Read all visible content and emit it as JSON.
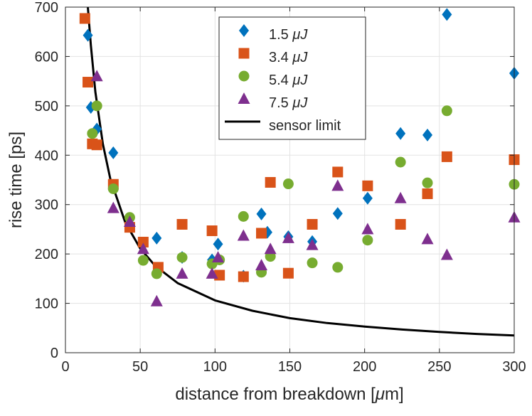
{
  "chart_data": {
    "type": "scatter",
    "title": "",
    "xlabel": "distance from breakdown [",
    "xlabel_unit": "μ",
    "xlabel_tail": "m]",
    "ylabel": "rise time [ps]",
    "xlim": [
      0,
      300
    ],
    "ylim": [
      0,
      700
    ],
    "xticks": [
      0,
      50,
      100,
      150,
      200,
      250,
      300
    ],
    "yticks": [
      0,
      100,
      200,
      300,
      400,
      500,
      600,
      700
    ],
    "grid": true,
    "legend_position": "top-center",
    "series": [
      {
        "name": "1.5 μJ",
        "label_num": "1.5",
        "label_unit": "μJ",
        "marker": "diamond",
        "color": "#0072BD",
        "x": [
          15,
          17,
          21,
          32,
          61,
          78,
          98,
          102,
          119,
          131,
          135,
          149,
          165,
          182,
          202,
          224,
          242,
          255,
          300
        ],
        "y": [
          643,
          497,
          453,
          405,
          232,
          193,
          188,
          220,
          155,
          281,
          244,
          235,
          225,
          282,
          313,
          444,
          441,
          685,
          566
        ]
      },
      {
        "name": "3.4 μJ",
        "label_num": "3.4",
        "label_unit": "μJ",
        "marker": "square",
        "color": "#D95319",
        "x": [
          13,
          15,
          18,
          21,
          32,
          43,
          52,
          62,
          78,
          98,
          103,
          119,
          131,
          137,
          149,
          165,
          182,
          202,
          224,
          242,
          255,
          300
        ],
        "y": [
          677,
          548,
          423,
          421,
          341,
          254,
          224,
          173,
          260,
          247,
          157,
          154,
          242,
          345,
          161,
          260,
          366,
          338,
          260,
          322,
          397,
          391
        ]
      },
      {
        "name": "5.4 μJ",
        "label_num": "5.4",
        "label_unit": "μJ",
        "marker": "circle",
        "color": "#77AC30",
        "x": [
          18,
          21,
          32,
          43,
          52,
          61,
          78,
          98,
          103,
          119,
          131,
          137,
          149,
          165,
          182,
          202,
          224,
          242,
          255,
          300
        ],
        "y": [
          444,
          500,
          332,
          274,
          187,
          160,
          193,
          180,
          188,
          276,
          163,
          195,
          342,
          182,
          173,
          228,
          386,
          344,
          490,
          341
        ]
      },
      {
        "name": "7.5 μJ",
        "label_num": "7.5",
        "label_unit": "μJ",
        "marker": "triangle",
        "color": "#7E2F8E",
        "x": [
          21,
          32,
          43,
          52,
          61,
          78,
          98,
          102,
          119,
          131,
          137,
          149,
          165,
          182,
          202,
          224,
          242,
          255,
          300
        ],
        "y": [
          560,
          293,
          265,
          210,
          104,
          160,
          160,
          193,
          237,
          177,
          210,
          232,
          218,
          338,
          250,
          313,
          230,
          198,
          274
        ]
      },
      {
        "name": "sensor limit",
        "marker": "line",
        "color": "#000000",
        "curve": "y = 10570 / x",
        "x": [
          15,
          17,
          20,
          25,
          30,
          40,
          50,
          60,
          75,
          100,
          125,
          150,
          175,
          200,
          225,
          250,
          275,
          300
        ],
        "y": [
          700,
          622,
          528,
          423,
          352,
          264,
          211,
          176,
          141,
          106,
          85,
          70,
          60,
          53,
          47,
          42,
          38,
          35
        ]
      }
    ]
  }
}
